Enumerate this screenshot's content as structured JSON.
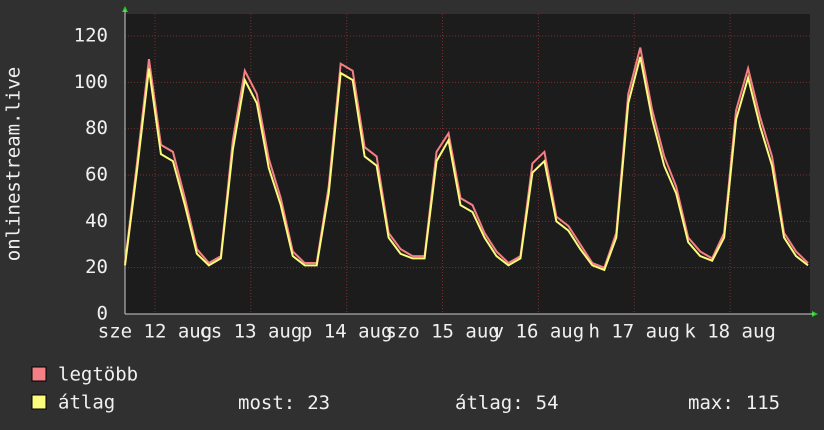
{
  "chart_data": {
    "type": "line",
    "y_label": "onlinestream.live",
    "x": [
      0,
      3,
      6,
      9,
      12,
      15,
      18,
      21,
      24,
      27,
      30,
      33,
      36,
      39,
      42,
      45,
      48,
      51,
      54,
      57,
      60,
      63,
      66,
      69,
      72,
      75,
      78,
      81,
      84,
      87,
      90,
      93,
      96,
      99,
      102,
      105,
      108,
      111,
      114,
      117,
      120,
      123,
      126,
      129,
      132,
      135,
      138,
      141,
      144,
      147,
      150,
      153,
      156,
      159,
      162,
      165,
      168,
      171
    ],
    "xlim": [
      0,
      171.5
    ],
    "xticks": [
      {
        "value": 7.5,
        "label": "sze 12 aug"
      },
      {
        "value": 31.5,
        "label": "cs 13 aug"
      },
      {
        "value": 55.5,
        "label": "p 14 aug"
      },
      {
        "value": 79.5,
        "label": "szo 15 aug"
      },
      {
        "value": 103.5,
        "label": "v 16 aug"
      },
      {
        "value": 127.5,
        "label": "h 17 aug"
      },
      {
        "value": 151.5,
        "label": "k 18 aug"
      }
    ],
    "ylim": [
      0,
      129.5
    ],
    "yticks": [
      0,
      20,
      40,
      60,
      80,
      100,
      120
    ],
    "grid": true,
    "series": [
      {
        "name": "legtöbb",
        "color": "#f47f84",
        "values": [
          22,
          65,
          110,
          73,
          70,
          50,
          28,
          22,
          25,
          75,
          105,
          95,
          67,
          50,
          27,
          22,
          22,
          55,
          108,
          105,
          72,
          68,
          35,
          28,
          25,
          25,
          70,
          78,
          50,
          47,
          35,
          27,
          22,
          25,
          65,
          70,
          42,
          38,
          30,
          22,
          20,
          35,
          95,
          115,
          88,
          68,
          55,
          33,
          27,
          24,
          35,
          88,
          106,
          85,
          68,
          35,
          27,
          22
        ]
      },
      {
        "name": "átlag",
        "color": "#fbfb7c",
        "values": [
          21,
          62,
          106,
          69,
          66,
          47,
          26,
          21,
          24,
          71,
          101,
          91,
          63,
          47,
          25,
          21,
          21,
          52,
          104,
          101,
          68,
          64,
          33,
          26,
          24,
          24,
          66,
          75,
          47,
          44,
          33,
          25,
          21,
          24,
          61,
          66,
          40,
          36,
          28,
          21,
          19,
          33,
          91,
          111,
          84,
          64,
          52,
          31,
          25,
          23,
          33,
          84,
          102,
          81,
          64,
          33,
          25,
          21
        ]
      }
    ],
    "stats": [
      {
        "label": "most:",
        "value": 23
      },
      {
        "label": "átlag:",
        "value": 54
      },
      {
        "label": "max:",
        "value": 115
      }
    ]
  }
}
